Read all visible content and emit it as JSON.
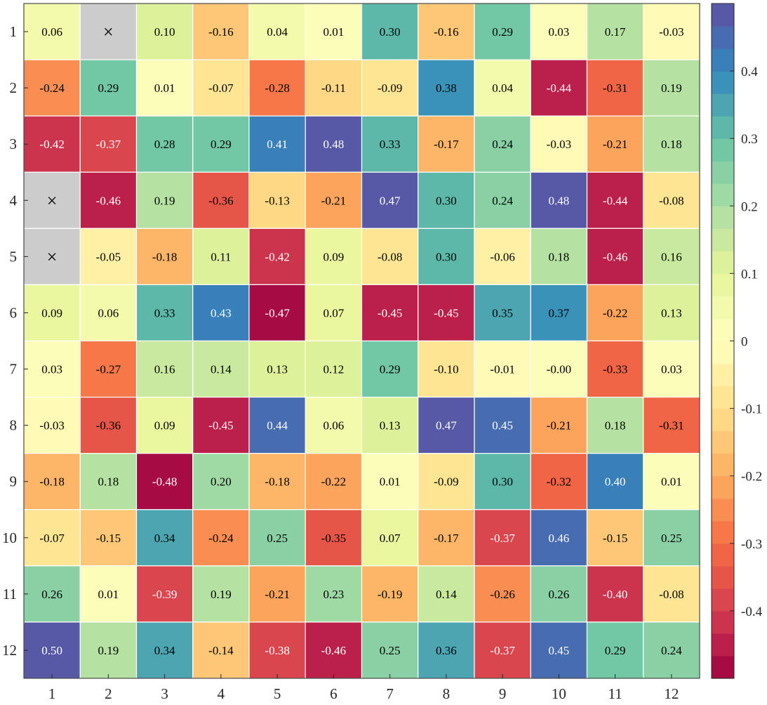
{
  "chart_data": {
    "type": "heatmap",
    "title": "",
    "xlabel": "",
    "ylabel": "",
    "x_categories": [
      "1",
      "2",
      "3",
      "4",
      "5",
      "6",
      "7",
      "8",
      "9",
      "10",
      "11",
      "12"
    ],
    "y_categories": [
      "1",
      "2",
      "3",
      "4",
      "5",
      "6",
      "7",
      "8",
      "9",
      "10",
      "11",
      "12"
    ],
    "missing_marker": "×",
    "missing_color": "#cccccc",
    "values": [
      [
        0.06,
        null,
        0.1,
        -0.16,
        0.04,
        0.01,
        0.3,
        -0.16,
        0.29,
        0.03,
        0.17,
        -0.03
      ],
      [
        -0.24,
        0.29,
        0.01,
        -0.07,
        -0.28,
        -0.11,
        -0.09,
        0.38,
        0.04,
        -0.44,
        -0.31,
        0.19
      ],
      [
        -0.42,
        -0.37,
        0.28,
        0.29,
        0.41,
        0.48,
        0.33,
        -0.17,
        0.24,
        -0.03,
        -0.21,
        0.18
      ],
      [
        null,
        -0.46,
        0.19,
        -0.36,
        -0.13,
        -0.21,
        0.47,
        0.3,
        0.24,
        0.48,
        -0.44,
        -0.08
      ],
      [
        null,
        -0.05,
        -0.18,
        0.11,
        -0.42,
        0.09,
        -0.08,
        0.3,
        -0.06,
        0.18,
        -0.46,
        0.16
      ],
      [
        0.09,
        0.06,
        0.33,
        0.43,
        -0.47,
        0.07,
        -0.45,
        -0.45,
        0.35,
        0.37,
        -0.22,
        0.13
      ],
      [
        0.03,
        -0.27,
        0.16,
        0.14,
        0.13,
        0.12,
        0.29,
        -0.1,
        -0.01,
        -0.0,
        -0.33,
        0.03
      ],
      [
        -0.03,
        -0.36,
        0.09,
        -0.45,
        0.44,
        0.06,
        0.13,
        0.47,
        0.45,
        -0.21,
        0.18,
        -0.31
      ],
      [
        -0.18,
        0.18,
        -0.48,
        0.2,
        -0.18,
        -0.22,
        0.01,
        -0.09,
        0.3,
        -0.32,
        0.4,
        0.01
      ],
      [
        -0.07,
        -0.15,
        0.34,
        -0.24,
        0.25,
        -0.35,
        0.07,
        -0.17,
        -0.37,
        0.46,
        -0.15,
        0.25
      ],
      [
        0.26,
        0.01,
        -0.39,
        0.19,
        -0.21,
        0.23,
        -0.19,
        0.14,
        -0.26,
        0.26,
        -0.4,
        -0.08
      ],
      [
        0.5,
        0.19,
        0.34,
        -0.14,
        -0.38,
        -0.46,
        0.25,
        0.36,
        -0.37,
        0.45,
        0.29,
        0.24
      ]
    ],
    "colorbar": {
      "range": [
        -0.5,
        0.5
      ],
      "levels": 30,
      "ticks": [
        -0.4,
        -0.3,
        -0.2,
        -0.1,
        0,
        0.1,
        0.2,
        0.3,
        0.4
      ],
      "tick_labels": [
        "-0.4",
        "-0.3",
        "-0.2",
        "-0.1",
        "0",
        "0.1",
        "0.2",
        "0.3",
        "0.4"
      ],
      "colormap": "Spectral",
      "colormap_stops": [
        "#9e0142",
        "#d53e4f",
        "#f46d43",
        "#fdae61",
        "#fee08b",
        "#ffffbf",
        "#e6f598",
        "#abdda4",
        "#66c2a5",
        "#3288bd",
        "#5e4fa2"
      ]
    },
    "grid": true,
    "grid_color": "#ffffff"
  }
}
